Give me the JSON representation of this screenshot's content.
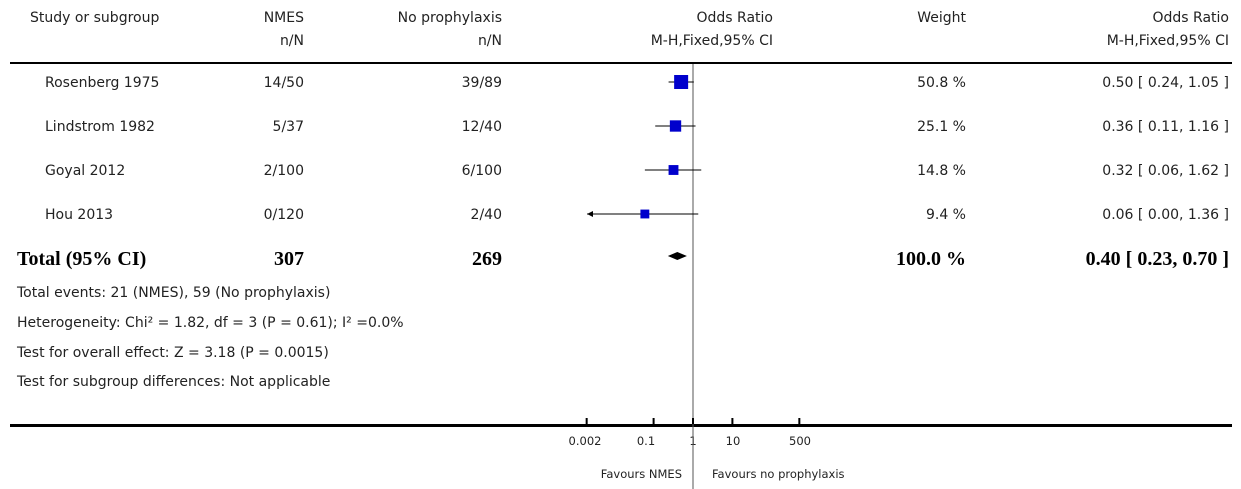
{
  "header": {
    "study_col": "Study or subgroup",
    "group1": "NMES",
    "group1_sub": "n/N",
    "group2": "No prophylaxis",
    "group2_sub": "n/N",
    "or_col": "Odds Ratio",
    "or_col_sub": "M-H,Fixed,95% CI",
    "weight_col": "Weight",
    "or_col2": "Odds Ratio",
    "or_col2_sub": "M-H,Fixed,95% CI"
  },
  "chart_data": {
    "type": "forest",
    "scale": "log",
    "xlim": [
      0.002,
      500
    ],
    "x_ticks": [
      {
        "value": 0.002,
        "label": "0.002"
      },
      {
        "value": 0.1,
        "label": "0.1"
      },
      {
        "value": 1,
        "label": "1"
      },
      {
        "value": 10,
        "label": "10"
      },
      {
        "value": 500,
        "label": "500"
      }
    ],
    "studies": [
      {
        "name": "Rosenberg 1975",
        "g1": "14/50",
        "g2": "39/89",
        "weight": "50.8 %",
        "ci_text": "0.50 [ 0.24, 1.05 ]",
        "or": 0.5,
        "lo": 0.24,
        "hi": 1.05,
        "w": 50.8
      },
      {
        "name": "Lindstrom 1982",
        "g1": "5/37",
        "g2": "12/40",
        "weight": "25.1 %",
        "ci_text": "0.36 [ 0.11, 1.16 ]",
        "or": 0.36,
        "lo": 0.11,
        "hi": 1.16,
        "w": 25.1
      },
      {
        "name": "Goyal 2012",
        "g1": "2/100",
        "g2": "6/100",
        "weight": "14.8 %",
        "ci_text": "0.32 [ 0.06, 1.62 ]",
        "or": 0.32,
        "lo": 0.06,
        "hi": 1.62,
        "w": 14.8
      },
      {
        "name": "Hou 2013",
        "g1": "0/120",
        "g2": "2/40",
        "weight": "9.4 %",
        "ci_text": "0.06 [ 0.00, 1.36 ]",
        "or": 0.06,
        "lo": 0.0,
        "hi": 1.36,
        "w": 9.4
      }
    ],
    "total": {
      "label": "Total (95% CI)",
      "g1": "307",
      "g2": "269",
      "weight": "100.0 %",
      "ci_text": "0.40 [ 0.23, 0.70 ]",
      "or": 0.4,
      "lo": 0.23,
      "hi": 0.7
    },
    "favours_left": "Favours NMES",
    "favours_right": "Favours no prophylaxis"
  },
  "footnotes": {
    "events": "Total events: 21 (NMES), 59 (No prophylaxis)",
    "heterogeneity": "Heterogeneity: Chi² = 1.82, df = 3 (P = 0.61); I² =0.0%",
    "overall": "Test for overall effect: Z = 3.18 (P = 0.0015)",
    "subgroup": "Test for subgroup differences: Not applicable"
  },
  "colors": {
    "square": "#0000cc",
    "line": "#000000",
    "axis": "#000000"
  }
}
